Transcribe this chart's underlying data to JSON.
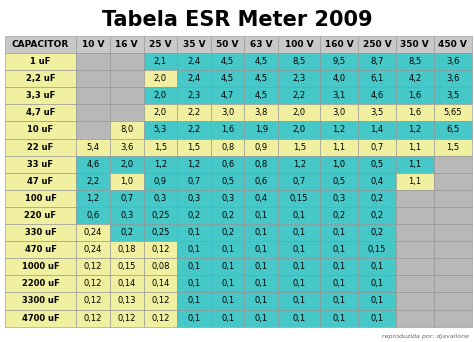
{
  "title": "Tabela ESR Meter 2009",
  "watermark": "reproduzida por: djavallone",
  "columns": [
    "CAPACITOR",
    "10 V",
    "16 V",
    "25 V",
    "35 V",
    "50 V",
    "63 V",
    "100 V",
    "160 V",
    "250 V",
    "350 V",
    "450 V"
  ],
  "rows": [
    [
      "1 uF",
      "",
      "",
      "2,1",
      "2,4",
      "4,5",
      "4,5",
      "8,5",
      "9,5",
      "8,7",
      "8,5",
      "3,6"
    ],
    [
      "2,2 uF",
      "",
      "",
      "2,0",
      "2,4",
      "4,5",
      "4,5",
      "2,3",
      "4,0",
      "6,1",
      "4,2",
      "3,6"
    ],
    [
      "3,3 uF",
      "",
      "",
      "2,0",
      "2,3",
      "4,7",
      "4,5",
      "2,2",
      "3,1",
      "4,6",
      "1,6",
      "3,5"
    ],
    [
      "4,7 uF",
      "",
      "",
      "2,0",
      "2,2",
      "3,0",
      "3,8",
      "2,0",
      "3,0",
      "3,5",
      "1,6",
      "5,65"
    ],
    [
      "10 uF",
      "",
      "8,0",
      "5,3",
      "2,2",
      "1,6",
      "1,9",
      "2,0",
      "1,2",
      "1,4",
      "1,2",
      "6,5"
    ],
    [
      "22 uF",
      "5,4",
      "3,6",
      "1,5",
      "1,5",
      "0,8",
      "0,9",
      "1,5",
      "1,1",
      "0,7",
      "1,1",
      "1,5"
    ],
    [
      "33 uF",
      "4,6",
      "2,0",
      "1,2",
      "1,2",
      "0,6",
      "0,8",
      "1,2",
      "1,0",
      "0,5",
      "1,1",
      ""
    ],
    [
      "47 uF",
      "2,2",
      "1,0",
      "0,9",
      "0,7",
      "0,5",
      "0,6",
      "0,7",
      "0,5",
      "0,4",
      "1,1",
      ""
    ],
    [
      "100 uF",
      "1,2",
      "0,7",
      "0,3",
      "0,3",
      "0,3",
      "0,4",
      "0,15",
      "0,3",
      "0,2",
      "",
      ""
    ],
    [
      "220 uF",
      "0,6",
      "0,3",
      "0,25",
      "0,2",
      "0,2",
      "0,1",
      "0,1",
      "0,2",
      "0,2",
      "",
      ""
    ],
    [
      "330 uF",
      "0,24",
      "0,2",
      "0,25",
      "0,1",
      "0,2",
      "0,1",
      "0,1",
      "0,1",
      "0,2",
      "",
      ""
    ],
    [
      "470 uF",
      "0,24",
      "0,18",
      "0,12",
      "0,1",
      "0,1",
      "0,1",
      "0,1",
      "0,1",
      "0,15",
      "",
      ""
    ],
    [
      "1000 uF",
      "0,12",
      "0,15",
      "0,08",
      "0,1",
      "0,1",
      "0,1",
      "0,1",
      "0,1",
      "0,1",
      "",
      ""
    ],
    [
      "2200 uF",
      "0,12",
      "0,14",
      "0,14",
      "0,1",
      "0,1",
      "0,1",
      "0,1",
      "0,1",
      "0,1",
      "",
      ""
    ],
    [
      "3300 uF",
      "0,12",
      "0,13",
      "0,12",
      "0,1",
      "0,1",
      "0,1",
      "0,1",
      "0,1",
      "0,1",
      "",
      ""
    ],
    [
      "4700 uF",
      "0,12",
      "0,12",
      "0,12",
      "0,1",
      "0,1",
      "0,1",
      "0,1",
      "0,1",
      "0,1",
      "",
      ""
    ]
  ],
  "cell_colors": [
    [
      "yellow",
      "gray",
      "gray",
      "cyan",
      "cyan",
      "cyan",
      "cyan",
      "cyan",
      "cyan",
      "cyan",
      "cyan",
      "cyan"
    ],
    [
      "yellow",
      "gray",
      "gray",
      "yellow",
      "cyan",
      "cyan",
      "cyan",
      "cyan",
      "cyan",
      "cyan",
      "cyan",
      "cyan"
    ],
    [
      "yellow",
      "gray",
      "gray",
      "cyan",
      "cyan",
      "cyan",
      "cyan",
      "cyan",
      "cyan",
      "cyan",
      "cyan",
      "cyan"
    ],
    [
      "yellow",
      "gray",
      "gray",
      "yellow",
      "yellow",
      "yellow",
      "yellow",
      "yellow",
      "yellow",
      "yellow",
      "yellow",
      "yellow"
    ],
    [
      "yellow",
      "gray",
      "yellow",
      "cyan",
      "cyan",
      "cyan",
      "cyan",
      "cyan",
      "cyan",
      "cyan",
      "cyan",
      "cyan"
    ],
    [
      "yellow",
      "yellow",
      "yellow",
      "yellow",
      "yellow",
      "yellow",
      "yellow",
      "yellow",
      "yellow",
      "yellow",
      "yellow",
      "yellow"
    ],
    [
      "yellow",
      "cyan",
      "cyan",
      "cyan",
      "cyan",
      "cyan",
      "cyan",
      "cyan",
      "cyan",
      "cyan",
      "cyan",
      "gray"
    ],
    [
      "yellow",
      "cyan",
      "yellow",
      "cyan",
      "cyan",
      "cyan",
      "cyan",
      "cyan",
      "cyan",
      "cyan",
      "yellow",
      "gray"
    ],
    [
      "yellow",
      "cyan",
      "cyan",
      "cyan",
      "cyan",
      "cyan",
      "cyan",
      "cyan",
      "cyan",
      "cyan",
      "gray",
      "gray"
    ],
    [
      "yellow",
      "cyan",
      "cyan",
      "cyan",
      "cyan",
      "cyan",
      "cyan",
      "cyan",
      "cyan",
      "cyan",
      "gray",
      "gray"
    ],
    [
      "yellow",
      "yellow",
      "cyan",
      "cyan",
      "cyan",
      "cyan",
      "cyan",
      "cyan",
      "cyan",
      "cyan",
      "gray",
      "gray"
    ],
    [
      "yellow",
      "yellow",
      "yellow",
      "yellow",
      "cyan",
      "cyan",
      "cyan",
      "cyan",
      "cyan",
      "cyan",
      "gray",
      "gray"
    ],
    [
      "yellow",
      "yellow",
      "yellow",
      "yellow",
      "cyan",
      "cyan",
      "cyan",
      "cyan",
      "cyan",
      "cyan",
      "gray",
      "gray"
    ],
    [
      "yellow",
      "yellow",
      "yellow",
      "yellow",
      "cyan",
      "cyan",
      "cyan",
      "cyan",
      "cyan",
      "cyan",
      "gray",
      "gray"
    ],
    [
      "yellow",
      "yellow",
      "yellow",
      "yellow",
      "cyan",
      "cyan",
      "cyan",
      "cyan",
      "cyan",
      "cyan",
      "gray",
      "gray"
    ],
    [
      "yellow",
      "yellow",
      "yellow",
      "yellow",
      "cyan",
      "cyan",
      "cyan",
      "cyan",
      "cyan",
      "cyan",
      "gray",
      "gray"
    ]
  ],
  "header_color": "#c8c8c8",
  "cyan_color": "#46c8c8",
  "yellow_color": "#f0f0a0",
  "gray_color": "#b8b8b8",
  "bg_color": "#ffffff",
  "title_fontsize": 15,
  "cell_fontsize": 6.0,
  "header_fontsize": 6.5,
  "col_widths": [
    1.7,
    0.8,
    0.8,
    0.8,
    0.8,
    0.8,
    0.8,
    1.0,
    0.9,
    0.9,
    0.9,
    0.9
  ]
}
